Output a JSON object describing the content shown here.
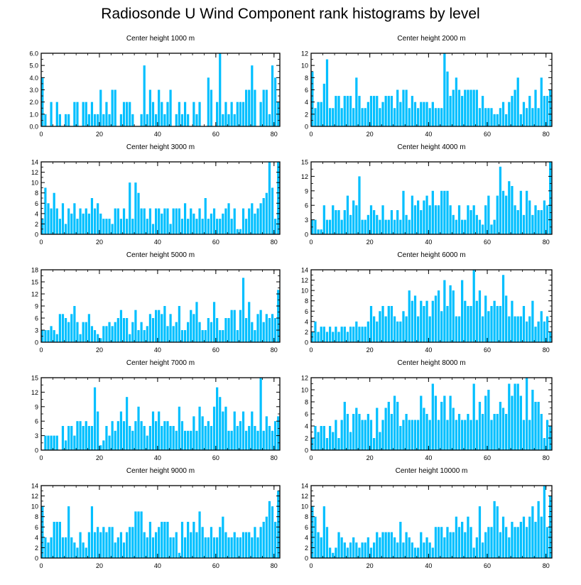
{
  "title": "Radiosonde U Wind Component rank histograms by level",
  "bar_color": "#00bfff",
  "chart_data": [
    {
      "type": "bar",
      "title": "Center height 1000 m",
      "xlim": [
        0,
        82
      ],
      "ylim": [
        0,
        6
      ],
      "xticks": [
        0,
        20,
        40,
        60,
        80
      ],
      "yticks": [
        0,
        1,
        2,
        3,
        4,
        5,
        6
      ],
      "ytick_labels": [
        "0.0",
        "1.0",
        "2.0",
        "3.0",
        "4.0",
        "5.0",
        "6.0"
      ],
      "values": [
        4,
        1,
        0,
        2,
        0,
        2,
        1,
        0,
        1,
        1,
        0,
        2,
        2,
        0,
        2,
        2,
        1,
        2,
        1,
        1,
        3,
        1,
        2,
        1,
        3,
        3,
        0,
        1,
        2,
        2,
        2,
        1,
        0,
        0,
        1,
        5,
        1,
        3,
        2,
        1,
        3,
        2,
        1,
        2,
        3,
        0,
        1,
        2,
        1,
        2,
        1,
        0,
        2,
        1,
        2,
        0,
        0,
        4,
        3,
        0,
        2,
        6,
        1,
        2,
        1,
        2,
        1,
        2,
        2,
        2,
        3,
        3,
        5,
        3,
        0,
        2,
        3,
        3,
        1,
        5,
        4,
        2
      ]
    },
    {
      "type": "bar",
      "title": "Center height 2000 m",
      "xlim": [
        0,
        82
      ],
      "ylim": [
        0,
        12
      ],
      "xticks": [
        0,
        20,
        40,
        60,
        80
      ],
      "yticks": [
        0,
        2,
        4,
        6,
        8,
        10,
        12
      ],
      "ytick_labels": [
        "0",
        "2",
        "4",
        "6",
        "8",
        "10",
        "12"
      ],
      "values": [
        9,
        3,
        4,
        4,
        7,
        11,
        3,
        3,
        5,
        5,
        3,
        5,
        5,
        5,
        3,
        8,
        5,
        3,
        3,
        4,
        5,
        5,
        5,
        3,
        4,
        5,
        5,
        5,
        3,
        6,
        4,
        6,
        6,
        3,
        5,
        4,
        3,
        4,
        4,
        4,
        3,
        4,
        3,
        3,
        3,
        12,
        9,
        5,
        6,
        8,
        6,
        5,
        6,
        6,
        6,
        6,
        6,
        3,
        5,
        3,
        3,
        3,
        2,
        2,
        3,
        4,
        2,
        4,
        5,
        6,
        8,
        2,
        4,
        3,
        5,
        3,
        6,
        3,
        8,
        5,
        5,
        6
      ]
    },
    {
      "type": "bar",
      "title": "Center height 3000 m",
      "xlim": [
        0,
        82
      ],
      "ylim": [
        0,
        14
      ],
      "xticks": [
        0,
        20,
        40,
        60,
        80
      ],
      "yticks": [
        0,
        2,
        4,
        6,
        8,
        10,
        12,
        14
      ],
      "ytick_labels": [
        "0",
        "2",
        "4",
        "6",
        "8",
        "10",
        "12",
        "14"
      ],
      "values": [
        3,
        9,
        6,
        5,
        8,
        5,
        3,
        6,
        2,
        5,
        4,
        6,
        3,
        5,
        4,
        5,
        4,
        7,
        5,
        6,
        4,
        3,
        3,
        3,
        2,
        5,
        5,
        3,
        5,
        3,
        10,
        3,
        10,
        8,
        5,
        5,
        3,
        5,
        2,
        5,
        5,
        4,
        5,
        5,
        2,
        5,
        5,
        5,
        3,
        6,
        3,
        5,
        4,
        3,
        5,
        3,
        7,
        3,
        4,
        5,
        3,
        3,
        4,
        5,
        6,
        3,
        5,
        1,
        1,
        5,
        3,
        5,
        6,
        4,
        5,
        6,
        7,
        8,
        14,
        9,
        3,
        14
      ]
    },
    {
      "type": "bar",
      "title": "Center height 4000 m",
      "xlim": [
        0,
        82
      ],
      "ylim": [
        0,
        15
      ],
      "xticks": [
        0,
        20,
        40,
        60,
        80
      ],
      "yticks": [
        0,
        3,
        6,
        9,
        12,
        15
      ],
      "ytick_labels": [
        "0",
        "3",
        "6",
        "9",
        "12",
        "15"
      ],
      "values": [
        3,
        3,
        1,
        1,
        6,
        3,
        3,
        6,
        5,
        5,
        3,
        5,
        8,
        4,
        7,
        6,
        12,
        3,
        3,
        4,
        6,
        5,
        4,
        3,
        6,
        3,
        3,
        5,
        3,
        5,
        3,
        9,
        4,
        3,
        8,
        6,
        7,
        5,
        7,
        8,
        6,
        9,
        6,
        6,
        9,
        9,
        9,
        6,
        4,
        3,
        6,
        3,
        3,
        6,
        5,
        6,
        4,
        3,
        2,
        6,
        8,
        2,
        3,
        8,
        14,
        9,
        8,
        11,
        10,
        6,
        5,
        9,
        4,
        9,
        7,
        4,
        6,
        5,
        5,
        7,
        6,
        15
      ]
    },
    {
      "type": "bar",
      "title": "Center height 5000 m",
      "xlim": [
        0,
        82
      ],
      "ylim": [
        0,
        18
      ],
      "xticks": [
        0,
        20,
        40,
        60,
        80
      ],
      "yticks": [
        0,
        3,
        6,
        9,
        12,
        15,
        18
      ],
      "ytick_labels": [
        "0",
        "3",
        "6",
        "9",
        "12",
        "15",
        "18"
      ],
      "values": [
        3,
        3,
        3,
        4,
        3,
        2,
        7,
        7,
        6,
        5,
        7,
        9,
        5,
        2,
        5,
        5,
        7,
        4,
        3,
        2,
        1,
        4,
        4,
        5,
        4,
        5,
        6,
        8,
        6,
        6,
        2,
        5,
        8,
        3,
        5,
        3,
        4,
        7,
        6,
        8,
        8,
        7,
        9,
        4,
        7,
        4,
        5,
        9,
        3,
        3,
        5,
        8,
        7,
        10,
        5,
        3,
        3,
        6,
        5,
        10,
        6,
        3,
        3,
        6,
        6,
        8,
        8,
        3,
        8,
        16,
        6,
        10,
        5,
        3,
        7,
        8,
        5,
        7,
        6,
        7,
        6,
        13
      ]
    },
    {
      "type": "bar",
      "title": "Center height 6000 m",
      "xlim": [
        0,
        82
      ],
      "ylim": [
        0,
        14
      ],
      "xticks": [
        0,
        20,
        40,
        60,
        80
      ],
      "yticks": [
        0,
        2,
        4,
        6,
        8,
        10,
        12,
        14
      ],
      "ytick_labels": [
        "0",
        "2",
        "4",
        "6",
        "8",
        "10",
        "12",
        "14"
      ],
      "values": [
        2,
        4,
        2,
        3,
        3,
        2,
        3,
        2,
        3,
        2,
        3,
        3,
        2,
        3,
        3,
        4,
        3,
        3,
        3,
        4,
        7,
        5,
        4,
        6,
        7,
        5,
        7,
        7,
        5,
        4,
        4,
        6,
        5,
        10,
        8,
        9,
        5,
        8,
        7,
        8,
        5,
        8,
        9,
        10,
        6,
        12,
        7,
        11,
        10,
        5,
        5,
        12,
        8,
        7,
        7,
        14,
        8,
        10,
        5,
        9,
        6,
        7,
        8,
        7,
        7,
        13,
        9,
        5,
        8,
        5,
        5,
        5,
        7,
        4,
        5,
        8,
        3,
        4,
        6,
        4,
        5,
        2
      ]
    },
    {
      "type": "bar",
      "title": "Center height 7000 m",
      "xlim": [
        0,
        82
      ],
      "ylim": [
        0,
        15
      ],
      "xticks": [
        0,
        20,
        40,
        60,
        80
      ],
      "yticks": [
        0,
        3,
        6,
        9,
        12,
        15
      ],
      "ytick_labels": [
        "0",
        "3",
        "6",
        "9",
        "12",
        "15"
      ],
      "values": [
        0,
        3,
        3,
        3,
        3,
        3,
        0,
        5,
        2,
        5,
        5,
        3,
        6,
        6,
        5,
        6,
        5,
        5,
        13,
        8,
        1,
        2,
        5,
        3,
        6,
        4,
        6,
        8,
        6,
        11,
        5,
        4,
        6,
        9,
        6,
        5,
        3,
        5,
        8,
        6,
        8,
        5,
        6,
        6,
        5,
        5,
        4,
        9,
        6,
        4,
        4,
        4,
        7,
        4,
        9,
        7,
        5,
        6,
        5,
        9,
        13,
        11,
        8,
        9,
        4,
        4,
        8,
        5,
        6,
        8,
        4,
        5,
        8,
        5,
        4,
        15,
        4,
        7,
        5,
        4,
        6,
        7
      ]
    },
    {
      "type": "bar",
      "title": "Center height 8000 m",
      "xlim": [
        0,
        82
      ],
      "ylim": [
        0,
        12
      ],
      "xticks": [
        0,
        20,
        40,
        60,
        80
      ],
      "yticks": [
        0,
        2,
        4,
        6,
        8,
        10,
        12
      ],
      "ytick_labels": [
        "0",
        "2",
        "4",
        "6",
        "8",
        "10",
        "12"
      ],
      "values": [
        2,
        4,
        3,
        4,
        4,
        2,
        4,
        3,
        5,
        2,
        5,
        8,
        6,
        3,
        6,
        7,
        6,
        5,
        5,
        6,
        5,
        2,
        7,
        3,
        5,
        7,
        8,
        6,
        9,
        8,
        4,
        5,
        6,
        5,
        5,
        5,
        5,
        9,
        7,
        6,
        5,
        11,
        9,
        5,
        8,
        9,
        5,
        9,
        7,
        5,
        6,
        5,
        5,
        6,
        5,
        11,
        5,
        8,
        6,
        9,
        10,
        5,
        6,
        6,
        8,
        7,
        6,
        11,
        9,
        11,
        11,
        9,
        5,
        12,
        5,
        10,
        8,
        8,
        6,
        2,
        5,
        4
      ]
    },
    {
      "type": "bar",
      "title": "Center height 9000 m",
      "xlim": [
        0,
        82
      ],
      "ylim": [
        0,
        14
      ],
      "xticks": [
        0,
        20,
        40,
        60,
        80
      ],
      "yticks": [
        0,
        2,
        4,
        6,
        8,
        10,
        12,
        14
      ],
      "ytick_labels": [
        "0",
        "2",
        "4",
        "6",
        "8",
        "10",
        "12",
        "14"
      ],
      "values": [
        10,
        4,
        3,
        4,
        7,
        7,
        7,
        4,
        4,
        10,
        4,
        3,
        2,
        5,
        3,
        2,
        5,
        10,
        5,
        6,
        5,
        6,
        5,
        6,
        6,
        3,
        4,
        5,
        3,
        5,
        6,
        6,
        9,
        9,
        9,
        5,
        4,
        7,
        4,
        5,
        6,
        7,
        7,
        7,
        4,
        4,
        5,
        1,
        7,
        4,
        7,
        5,
        7,
        5,
        9,
        6,
        4,
        4,
        6,
        4,
        4,
        6,
        8,
        5,
        4,
        4,
        5,
        4,
        4,
        5,
        5,
        5,
        4,
        6,
        4,
        6,
        7,
        8,
        11,
        10,
        7,
        13
      ]
    },
    {
      "type": "bar",
      "title": "Center height 10000 m",
      "xlim": [
        0,
        82
      ],
      "ylim": [
        0,
        14
      ],
      "xticks": [
        0,
        20,
        40,
        60,
        80
      ],
      "yticks": [
        0,
        2,
        4,
        6,
        8,
        10,
        12,
        14
      ],
      "ytick_labels": [
        "0",
        "2",
        "4",
        "6",
        "8",
        "10",
        "12",
        "14"
      ],
      "values": [
        10,
        8,
        5,
        4,
        10,
        6,
        2,
        1,
        2,
        5,
        4,
        3,
        2,
        3,
        4,
        3,
        2,
        3,
        3,
        4,
        2,
        3,
        5,
        4,
        5,
        5,
        5,
        5,
        4,
        3,
        7,
        3,
        5,
        4,
        3,
        2,
        2,
        5,
        3,
        4,
        3,
        2,
        6,
        6,
        6,
        4,
        6,
        5,
        5,
        8,
        6,
        7,
        5,
        8,
        6,
        2,
        4,
        10,
        3,
        5,
        6,
        6,
        11,
        10,
        5,
        8,
        6,
        4,
        7,
        6,
        6,
        7,
        8,
        6,
        8,
        10,
        7,
        11,
        8,
        14,
        6,
        12
      ]
    }
  ]
}
